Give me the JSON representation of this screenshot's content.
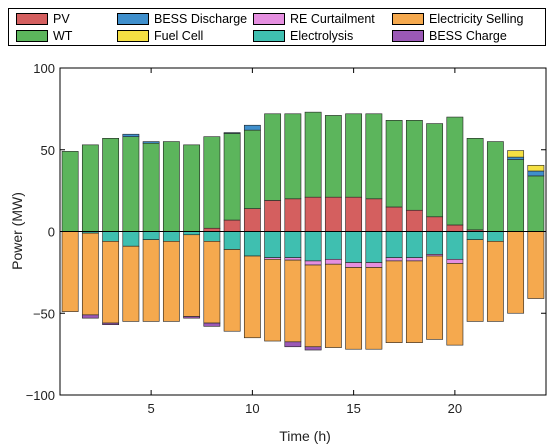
{
  "chart_data": {
    "type": "bar",
    "stacked": true,
    "xlabel": "Time (h)",
    "ylabel": "Power (MW)",
    "xlim": [
      0.5,
      24.5
    ],
    "ylim": [
      -100,
      100
    ],
    "xticks": [
      5,
      10,
      15,
      20
    ],
    "yticks": [
      -100,
      -50,
      0,
      50,
      100
    ],
    "grid": false,
    "legend_position": "top",
    "x": [
      1,
      2,
      3,
      4,
      5,
      6,
      7,
      8,
      9,
      10,
      11,
      12,
      13,
      14,
      15,
      16,
      17,
      18,
      19,
      20,
      21,
      22,
      23,
      24
    ],
    "positive_series": [
      {
        "key": "pv",
        "name": "PV",
        "color": "#d45f5f",
        "values": [
          0,
          0,
          0,
          0,
          0,
          0,
          0,
          2,
          7,
          14,
          19,
          20,
          21,
          21,
          21,
          20,
          15,
          13,
          9,
          4,
          1,
          0,
          0,
          0
        ]
      },
      {
        "key": "wt",
        "name": "WT",
        "color": "#5cb55c",
        "values": [
          49,
          53,
          57,
          58,
          54,
          55,
          53,
          56,
          53,
          48,
          53,
          52,
          52,
          50,
          51,
          52,
          53,
          55,
          57,
          66,
          56,
          55,
          44,
          34
        ]
      },
      {
        "key": "bess_discharge",
        "name": "BESS Discharge",
        "color": "#3f8fcc",
        "values": [
          0,
          0,
          0,
          1.5,
          1,
          0,
          0,
          0,
          0.5,
          3,
          0,
          0,
          0,
          0,
          0,
          0,
          0,
          0,
          0,
          0,
          0,
          0,
          1.5,
          3
        ]
      },
      {
        "key": "fuel_cell",
        "name": "Fuel Cell",
        "color": "#f5e043",
        "values": [
          0,
          0,
          0,
          0,
          0,
          0,
          0,
          0,
          0,
          0,
          0,
          0,
          0,
          0,
          0,
          0,
          0,
          0,
          0,
          0,
          0,
          0,
          4,
          3.5
        ]
      }
    ],
    "negative_series": [
      {
        "key": "electrolysis",
        "name": "Electrolysis",
        "color": "#3fbfb0",
        "values": [
          0,
          -1,
          -6,
          -9,
          -5,
          -6,
          -2,
          -6,
          -11,
          -15,
          -16,
          -16,
          -18,
          -17,
          -19,
          -19,
          -16,
          -16,
          -14,
          -17,
          -5,
          -6,
          0,
          0
        ]
      },
      {
        "key": "re_curtailment",
        "name": "RE Curtailment",
        "color": "#e58fe0",
        "values": [
          0,
          0,
          0,
          0,
          0,
          0,
          0,
          0,
          0,
          0,
          -1,
          -1.5,
          -2.5,
          -3,
          -3,
          -3,
          -2,
          -2,
          -1,
          -2.5,
          0,
          0,
          0,
          0
        ]
      },
      {
        "key": "electricity_selling",
        "name": "Electricity Selling",
        "color": "#f5a94e",
        "values": [
          -49,
          -50,
          -50,
          -46,
          -50,
          -49,
          -50,
          -50,
          -50,
          -50,
          -50,
          -50,
          -50,
          -51,
          -50,
          -50,
          -50,
          -50,
          -51,
          -50,
          -50,
          -49,
          -50,
          -41
        ]
      },
      {
        "key": "bess_charge",
        "name": "BESS Charge",
        "color": "#9b59b6",
        "values": [
          0,
          -2,
          -1,
          0,
          0,
          0,
          -1,
          -2,
          0,
          0,
          0,
          -3,
          -2,
          0,
          0,
          0,
          0,
          0,
          0,
          0,
          0,
          0,
          0,
          0
        ]
      }
    ],
    "legend": [
      {
        "key": "pv",
        "label": "PV",
        "color": "#d45f5f"
      },
      {
        "key": "bess_discharge",
        "label": "BESS Discharge",
        "color": "#3f8fcc"
      },
      {
        "key": "re_curtailment",
        "label": "RE Curtailment",
        "color": "#e58fe0"
      },
      {
        "key": "electricity_selling",
        "label": "Electricity Selling",
        "color": "#f5a94e"
      },
      {
        "key": "wt",
        "label": "WT",
        "color": "#5cb55c"
      },
      {
        "key": "fuel_cell",
        "label": "Fuel Cell",
        "color": "#f5e043"
      },
      {
        "key": "electrolysis",
        "label": "Electrolysis",
        "color": "#3fbfb0"
      },
      {
        "key": "bess_charge",
        "label": "BESS Charge",
        "color": "#9b59b6"
      }
    ]
  }
}
